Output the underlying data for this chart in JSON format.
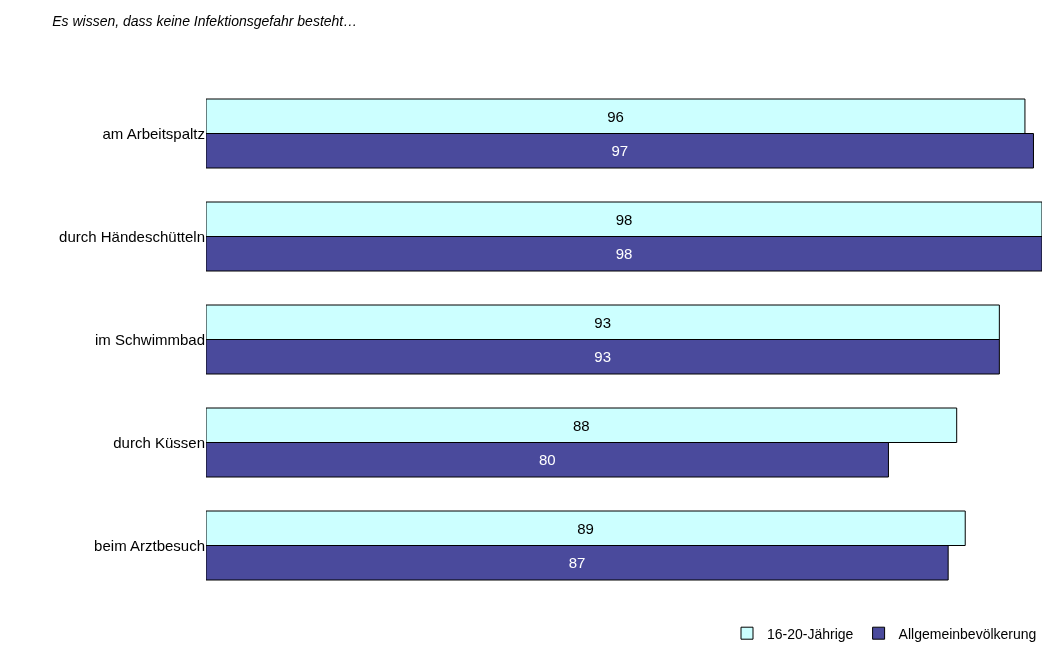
{
  "chart_data": {
    "type": "bar",
    "orientation": "horizontal",
    "title": "Es wissen, dass keine Infektionsgefahr besteht…",
    "categories": [
      "am Arbeitspaltz",
      "durch Händeschütteln",
      "im Schwimmbad",
      "durch Küssen",
      "beim Arztbesuch"
    ],
    "series": [
      {
        "name": "16-20-Jährige",
        "color": "#ccffff",
        "values": [
          96,
          98,
          93,
          88,
          89
        ]
      },
      {
        "name": "Allgemeinbevölkerung",
        "color": "#4a4a9c",
        "values": [
          97,
          98,
          93,
          80,
          87
        ]
      }
    ],
    "xlim": [
      0,
      98
    ],
    "data_labels": true,
    "legend": "bottom right",
    "tick_labels": "y"
  }
}
